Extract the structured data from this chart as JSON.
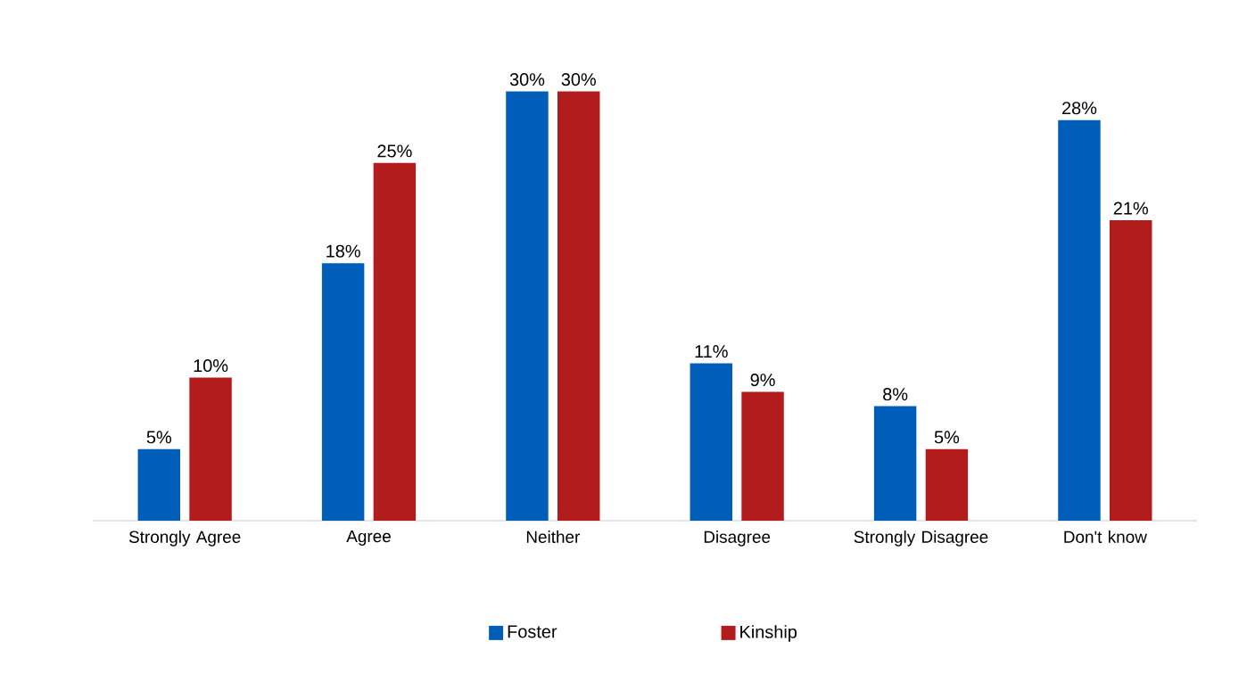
{
  "chart_data": {
    "type": "bar",
    "categories": [
      "Strongly Agree",
      "Agree",
      "Neither",
      "Disagree",
      "Strongly Disagree",
      "Don't know"
    ],
    "series": [
      {
        "name": "Foster",
        "color": "#005eb8",
        "values": [
          5,
          18,
          30,
          11,
          8,
          28
        ],
        "value_labels": [
          "5%",
          "18%",
          "30%",
          "11%",
          "8%",
          "28%"
        ]
      },
      {
        "name": "Kinship",
        "color": "#b21c1c",
        "values": [
          10,
          25,
          30,
          9,
          5,
          21
        ],
        "value_labels": [
          "10%",
          "25%",
          "30%",
          "9%",
          "5%",
          "21%"
        ]
      }
    ],
    "legend": "bottom",
    "grid": false
  }
}
